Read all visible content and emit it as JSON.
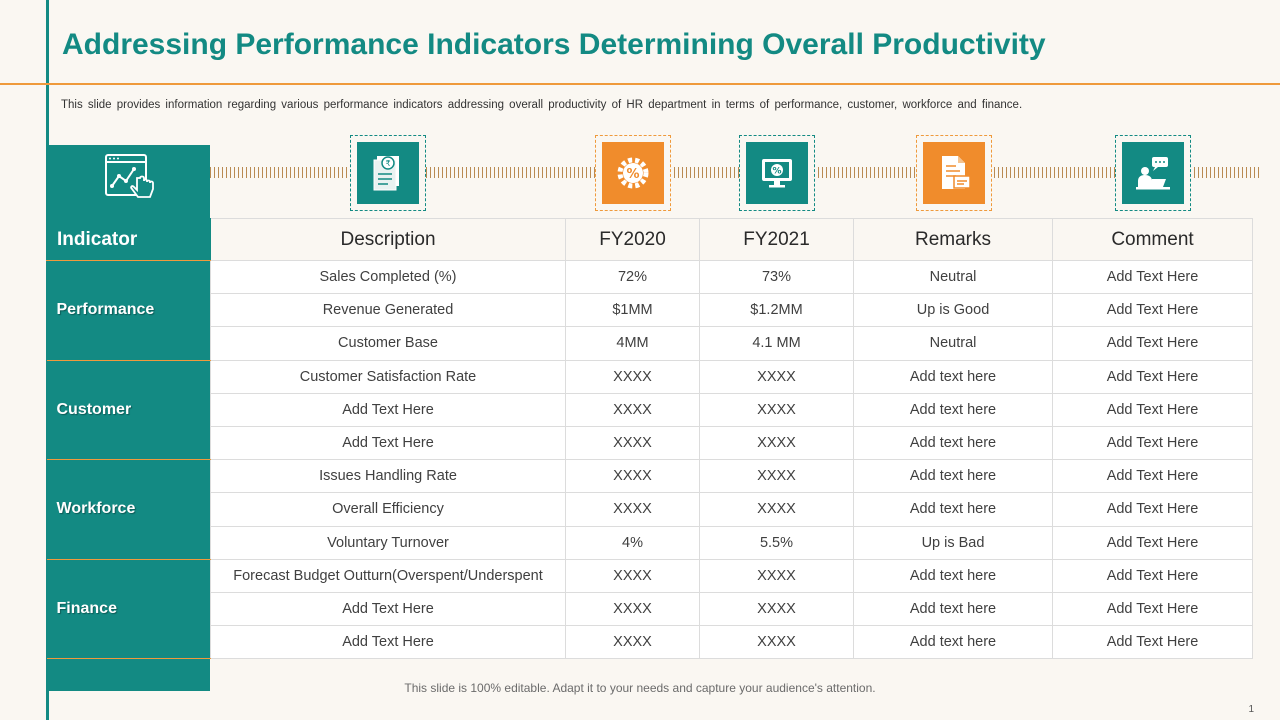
{
  "title": "Addressing Performance Indicators Determining Overall Productivity",
  "subtitle": "This slide provides information regarding various performance indicators addressing overall productivity of HR department in terms of performance, customer, workforce and finance.",
  "icons": [
    "analytics-chart-icon",
    "rupee-document-icon",
    "percent-gear-icon",
    "monitor-dollar-icon",
    "document-report-icon",
    "chat-person-laptop-icon"
  ],
  "colors": {
    "teal": "#138a83",
    "orange": "#f08c2c",
    "accent_line": "#ef9a3c"
  },
  "table": {
    "headers": [
      "Indicator",
      "Description",
      "FY2020",
      "FY2021",
      "Remarks",
      "Comment"
    ],
    "groups": [
      {
        "category": "Performance",
        "rows": [
          [
            "Sales Completed (%)",
            "72%",
            "73%",
            "Neutral",
            "Add Text Here"
          ],
          [
            "Revenue Generated",
            "$1MM",
            "$1.2MM",
            "Up is Good",
            "Add Text Here"
          ],
          [
            "Customer Base",
            "4MM",
            "4.1 MM",
            "Neutral",
            "Add Text Here"
          ]
        ]
      },
      {
        "category": "Customer",
        "rows": [
          [
            "Customer Satisfaction Rate",
            "XXXX",
            "XXXX",
            "Add text here",
            "Add Text Here"
          ],
          [
            "Add Text Here",
            "XXXX",
            "XXXX",
            "Add text here",
            "Add Text Here"
          ],
          [
            "Add Text Here",
            "XXXX",
            "XXXX",
            "Add text here",
            "Add Text Here"
          ]
        ]
      },
      {
        "category": "Workforce",
        "rows": [
          [
            "Issues Handling Rate",
            "XXXX",
            "XXXX",
            "Add text here",
            "Add Text Here"
          ],
          [
            "Overall Efficiency",
            "XXXX",
            "XXXX",
            "Add text here",
            "Add Text Here"
          ],
          [
            "Voluntary Turnover",
            "4%",
            "5.5%",
            "Up is Bad",
            "Add Text Here"
          ]
        ]
      },
      {
        "category": "Finance",
        "rows": [
          [
            "Forecast Budget Outturn(Overspent/Underspent",
            "XXXX",
            "XXXX",
            "Add text here",
            "Add Text Here"
          ],
          [
            "Add Text Here",
            "XXXX",
            "XXXX",
            "Add text here",
            "Add Text Here"
          ],
          [
            "Add Text Here",
            "XXXX",
            "XXXX",
            "Add text here",
            "Add Text Here"
          ]
        ]
      }
    ]
  },
  "footer": "This slide is 100% editable. Adapt it to your needs and capture your audience's attention.",
  "page_number": "1"
}
